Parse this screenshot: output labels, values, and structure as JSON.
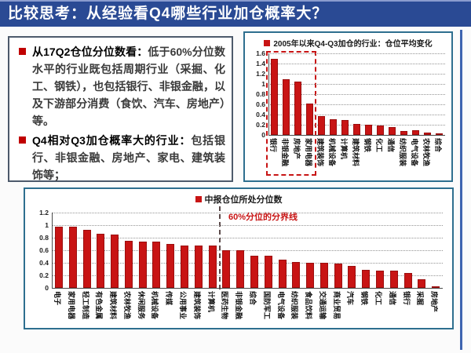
{
  "title": "比较思考：从经验看Q4哪些行业加仓概率大？",
  "colors": {
    "title_bg": "#2a4a94",
    "bar_red": "#c81414",
    "bullet_red": "#c00000",
    "panel_border": "#2e6f8f",
    "divider_label_red": "#c81414"
  },
  "notes": {
    "bullet1_lead": "从17Q2仓位分位数看：",
    "bullet1_body": "低于60%分位数水平的行业既包括周期行业（采掘、化工、钢铁），也包括银行、非银金融，以及下游部分消费（食饮、汽车、房地产）等。",
    "bullet2_lead": "Q4相对Q3加仓概率大的行业：",
    "bullet2_body": "包括银行、非银金融、房地产、家电、建筑装饰等；"
  },
  "chart_data": [
    {
      "type": "bar",
      "title": "2005年以来Q4-Q3加仓的行业：仓位平均变化",
      "legend_position": "top",
      "grid": true,
      "ylim": [
        0,
        1.6
      ],
      "ytick_step": 0.2,
      "yticks": [
        0,
        0.2,
        0.4,
        0.6,
        0.8,
        1,
        1.2,
        1.4,
        1.6
      ],
      "categories": [
        "银行",
        "非银金融",
        "房地产",
        "家用电器",
        "建筑装饰",
        "机械设备",
        "计算机",
        "建筑材料",
        "钢铁",
        "化工",
        "通信",
        "纺织服装",
        "电气设备",
        "农林牧渔",
        "综合"
      ],
      "values": [
        1.5,
        1.09,
        1.04,
        0.62,
        0.37,
        0.31,
        0.3,
        0.22,
        0.2,
        0.19,
        0.15,
        0.08,
        0.09,
        0.04,
        0.01
      ],
      "highlight_box_categories": [
        "银行",
        "非银金融",
        "房地产",
        "家用电器"
      ]
    },
    {
      "type": "bar",
      "title": "中报仓位所处分位数",
      "legend_position": "top",
      "grid": true,
      "ylim": [
        0,
        1.2
      ],
      "ytick_step": 0.2,
      "yticks": [
        0,
        0.2,
        0.4,
        0.6,
        0.8,
        1,
        1.2
      ],
      "categories": [
        "电子",
        "家用电器",
        "轻工制造",
        "有色金属",
        "建筑材料",
        "农林牧渔",
        "休闲服务",
        "机械设备",
        "传媒",
        "公用事业",
        "建筑装饰",
        "计算机",
        "医药生物",
        "非银金融",
        "综合",
        "国防军工",
        "电气设备",
        "纺织服装",
        "食品饮料",
        "交通运输",
        "商业贸易",
        "汽车",
        "钢铁",
        "化工",
        "通信",
        "银行",
        "采掘",
        "房地产"
      ],
      "values": [
        0.98,
        0.97,
        0.92,
        0.86,
        0.85,
        0.75,
        0.74,
        0.74,
        0.7,
        0.68,
        0.68,
        0.68,
        0.6,
        0.6,
        0.51,
        0.51,
        0.45,
        0.41,
        0.4,
        0.4,
        0.39,
        0.35,
        0.29,
        0.27,
        0.27,
        0.24,
        0.14,
        0.02
      ],
      "divider_after_category": "计算机",
      "divider_label": "60%分位的分界线"
    }
  ]
}
